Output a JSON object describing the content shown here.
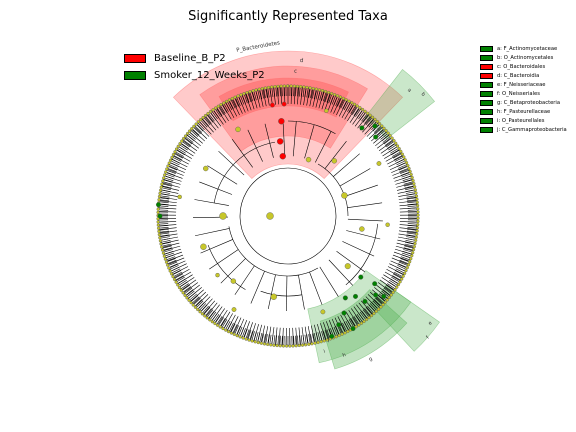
{
  "title": "Significantly Represented Taxa",
  "colors": {
    "baseline": "#ff0000",
    "smoker": "#008000",
    "neutral_node": "#c7c72a",
    "baseline_shade": "#ff6666",
    "smoker_shade": "#4fb04f"
  },
  "groups": [
    {
      "label": "Baseline_B_P2",
      "color": "#ff0000"
    },
    {
      "label": "Smoker_12_Weeks_P2",
      "color": "#008000"
    }
  ],
  "clades": [
    {
      "label": "a: F_Actinomycetaceae",
      "color": "#008000"
    },
    {
      "label": "b: O_Actinomycetales",
      "color": "#008000"
    },
    {
      "label": "c: O_Bacteroidales",
      "color": "#ff0000"
    },
    {
      "label": "d: C_Bacteroidia",
      "color": "#ff0000"
    },
    {
      "label": "e: F_Neisseriaceae",
      "color": "#008000"
    },
    {
      "label": "f: O_Neisseriales",
      "color": "#008000"
    },
    {
      "label": "g: C_Betaproteobacteria",
      "color": "#008000"
    },
    {
      "label": "h: F_Pasteurellaceae",
      "color": "#008000"
    },
    {
      "label": "i: O_Pasteurellales",
      "color": "#008000"
    },
    {
      "label": "j: C_Gammaproteobacteria",
      "color": "#008000"
    }
  ],
  "sector_labels": {
    "phylum": "P_Bacteroidetes",
    "d": "d",
    "c": "c",
    "a": "a",
    "b": "b",
    "e": "e",
    "f": "f",
    "g": "g",
    "h": "h",
    "i": "i",
    "j": "j"
  }
}
